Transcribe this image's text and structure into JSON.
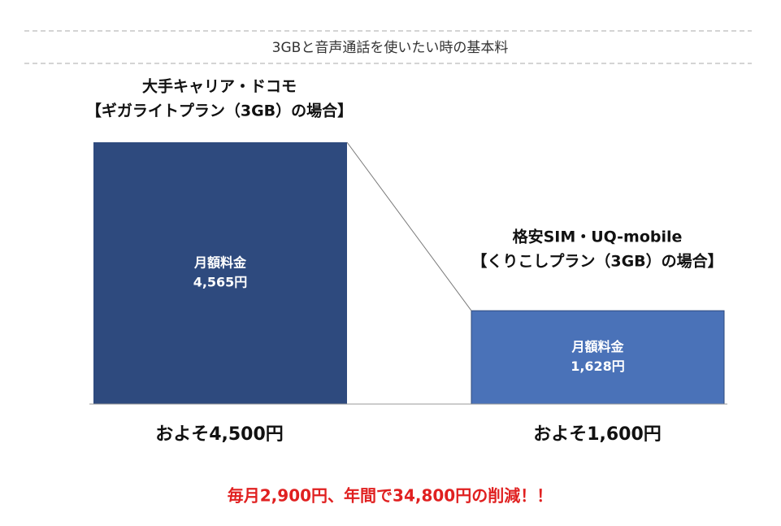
{
  "chart_data": {
    "type": "bar",
    "title": "3GBと音声通話を使いたい時の基本料",
    "categories": [
      [
        "大手キャリア・ドコモ",
        "【ギガライトプラン（3GB）の場合】"
      ],
      [
        "格安SIM・UQ-mobile",
        "【くりこしプラン（3GB）の場合】"
      ]
    ],
    "bar_label": "月額料金",
    "values": [
      4565,
      1628
    ],
    "value_labels": [
      "4,565円",
      "1,628円"
    ],
    "colors": [
      "#2e4a7e",
      "#4a72b8"
    ],
    "approx_labels": [
      "およそ4,500円",
      "およそ1,600円"
    ],
    "annotation": "毎月2,900円、年間で34,800円の削減！！"
  }
}
